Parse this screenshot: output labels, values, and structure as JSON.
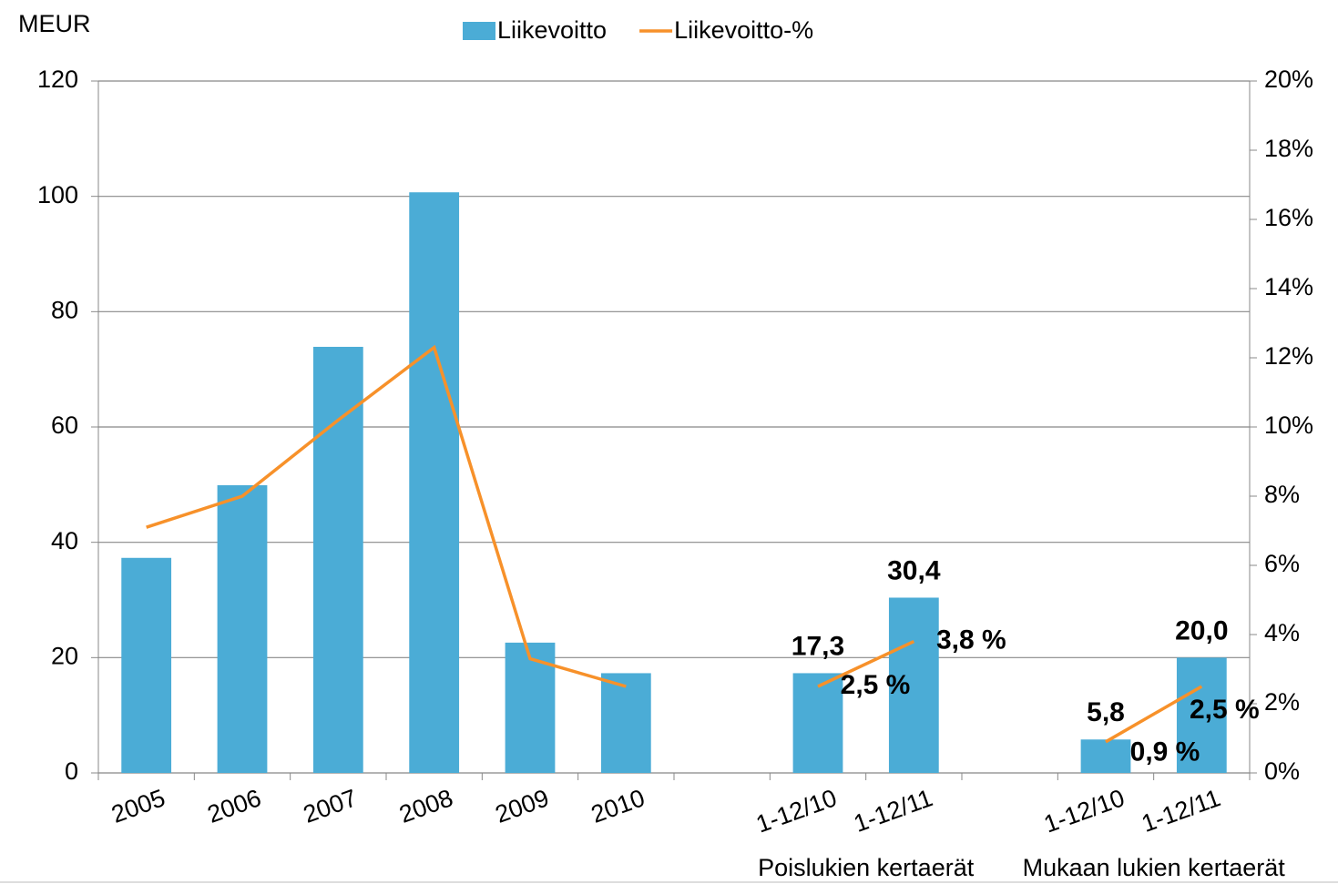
{
  "chart_data": {
    "type": "bar-line",
    "y_label": "MEUR",
    "categories": [
      "2005",
      "2006",
      "2007",
      "2008",
      "2009",
      "2010",
      null,
      "1-12/10",
      "1-12/11",
      null,
      "1-12/10",
      "1-12/11"
    ],
    "series": [
      {
        "name": "Liikevoitto",
        "type": "bar",
        "color": "#4bacd6",
        "values": [
          37.3,
          49.9,
          73.9,
          100.7,
          22.6,
          17.3,
          null,
          17.3,
          30.4,
          null,
          5.8,
          20.0
        ],
        "value_labels": [
          null,
          null,
          null,
          null,
          null,
          null,
          null,
          "17,3",
          "30,4",
          null,
          "5,8",
          "20,0"
        ]
      },
      {
        "name": "Liikevoitto-%",
        "type": "line",
        "axis": "y2",
        "color": "#f7912a",
        "values": [
          7.1,
          8.0,
          10.2,
          12.3,
          3.3,
          2.5,
          null,
          2.5,
          3.8,
          null,
          0.9,
          2.5
        ],
        "value_labels": [
          null,
          null,
          null,
          null,
          null,
          null,
          null,
          "2,5 %",
          "3,8 %",
          null,
          "0,9 %",
          "2,5 %"
        ]
      }
    ],
    "annotations": [
      "Poislukien kertaerät",
      "Mukaan lukien kertaerät"
    ],
    "ylim": [
      0,
      120
    ],
    "yticks": [
      0,
      20,
      40,
      60,
      80,
      100,
      120
    ],
    "y2lim": [
      0,
      20
    ],
    "y2ticks": [
      {
        "value": 0,
        "label": "0%"
      },
      {
        "value": 2,
        "label": "2%"
      },
      {
        "value": 4,
        "label": "4%"
      },
      {
        "value": 6,
        "label": "6%"
      },
      {
        "value": 8,
        "label": "8%"
      },
      {
        "value": 10,
        "label": "10%"
      },
      {
        "value": 12,
        "label": "12%"
      },
      {
        "value": 14,
        "label": "14%"
      },
      {
        "value": 16,
        "label": "16%"
      },
      {
        "value": 18,
        "label": "18%"
      },
      {
        "value": 20,
        "label": "20%"
      }
    ],
    "grid": true,
    "legend": "top"
  }
}
